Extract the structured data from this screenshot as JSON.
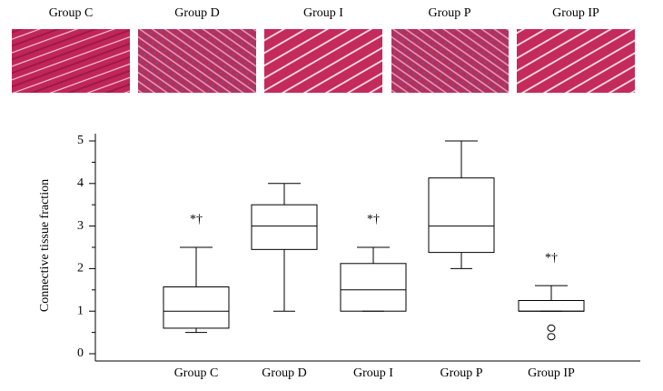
{
  "image_panels": {
    "labels": [
      "Group C",
      "Group D",
      "Group I",
      "Group P",
      "Group IP"
    ]
  },
  "chart_data": {
    "type": "box",
    "ylabel": "Connective tissue fraction",
    "categories": [
      "Group C",
      "Group D",
      "Group I",
      "Group P",
      "Group IP"
    ],
    "boxes": [
      {
        "min": 0.5,
        "q1": 0.6,
        "median": 1.0,
        "q3": 1.57,
        "max": 2.5,
        "outliers": []
      },
      {
        "min": 1.0,
        "q1": 2.45,
        "median": 3.0,
        "q3": 3.5,
        "max": 4.0,
        "outliers": []
      },
      {
        "min": 1.0,
        "q1": 1.0,
        "median": 1.5,
        "q3": 2.12,
        "max": 2.5,
        "outliers": []
      },
      {
        "min": 2.0,
        "q1": 2.38,
        "median": 3.0,
        "q3": 4.13,
        "max": 5.0,
        "outliers": []
      },
      {
        "min": 1.0,
        "q1": 1.0,
        "median": 1.0,
        "q3": 1.25,
        "max": 1.6,
        "outliers": [
          0.6,
          0.4
        ]
      }
    ],
    "annotations": [
      {
        "category": 0,
        "text": "*†"
      },
      {
        "category": 2,
        "text": "*†"
      },
      {
        "category": 4,
        "text": "*†"
      }
    ],
    "ylim": [
      0,
      5
    ],
    "yticks": [
      0,
      1,
      2,
      3,
      4,
      5
    ],
    "yminorticks": [
      0.5,
      1.5,
      2.5,
      3.5,
      4.5
    ],
    "color": "#000000"
  }
}
